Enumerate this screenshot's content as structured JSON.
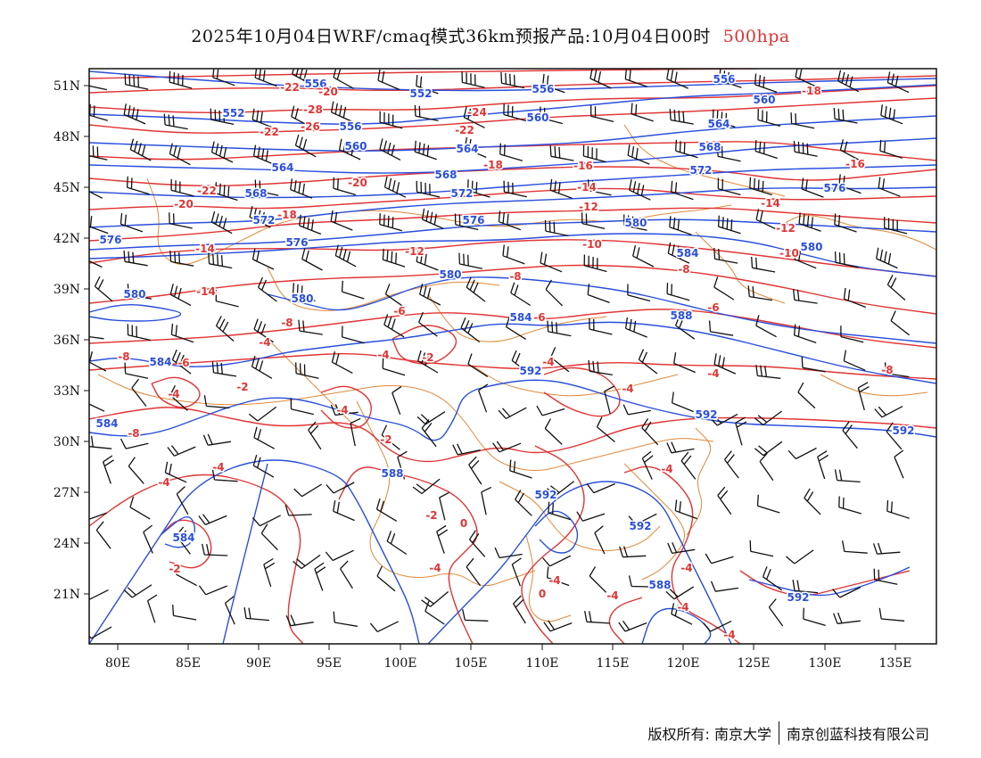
{
  "title": {
    "main": "2025年10月04日WRF/cmaq模式36km预报产品:10月04日00时",
    "level": "500hpa"
  },
  "colors": {
    "geopotential": "#2a4fdc",
    "temperature": "#e03535",
    "boundary": "#e08a3a",
    "wind": "#111111",
    "level_label": "#e03030"
  },
  "axes": {
    "lat_labels": [
      "51N",
      "48N",
      "45N",
      "42N",
      "39N",
      "36N",
      "33N",
      "30N",
      "27N",
      "24N",
      "21N"
    ],
    "lon_labels": [
      "80E",
      "85E",
      "90E",
      "95E",
      "100E",
      "105E",
      "110E",
      "115E",
      "120E",
      "125E",
      "130E",
      "135E"
    ]
  },
  "height_labels": [
    "552",
    "556",
    "560",
    "564",
    "568",
    "572",
    "576",
    "580",
    "584",
    "588",
    "592"
  ],
  "temperature_labels": [
    "-28",
    "-26",
    "-24",
    "-22",
    "-20",
    "-18",
    "-16",
    "-14",
    "-12",
    "-10",
    "-8",
    "-6",
    "-4",
    "-2",
    "0"
  ],
  "footer": {
    "copyright": "版权所有: 南京大学",
    "company": "南京创蓝科技有限公司"
  }
}
